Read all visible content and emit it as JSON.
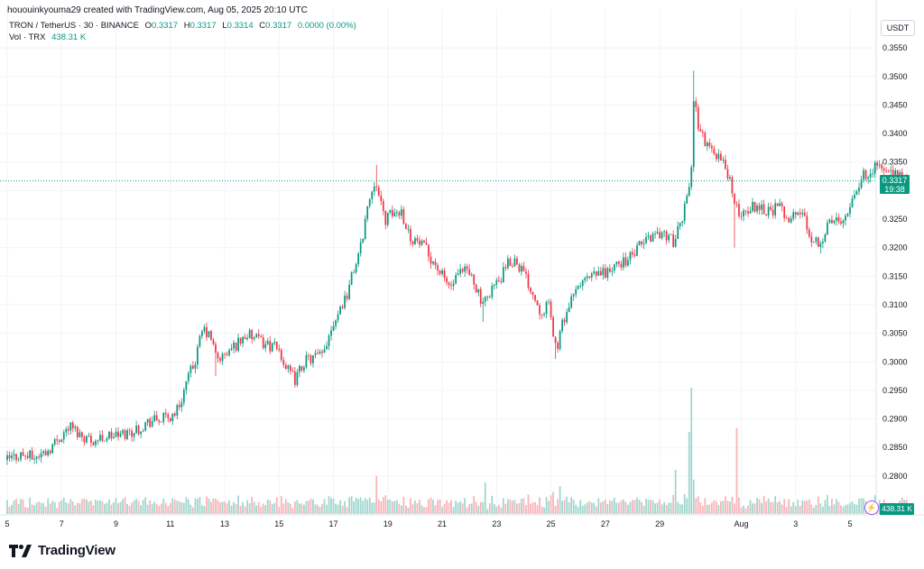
{
  "header": {
    "credit": "hououinkyouma29 created with TradingView.com, Aug 05, 2025 20:10 UTC"
  },
  "legend": {
    "symbol": "TRON / TetherUS · 30 · BINANCE",
    "o_label": "O",
    "o_value": "0.3317",
    "h_label": "H",
    "h_value": "0.3317",
    "l_label": "L",
    "l_value": "0.3314",
    "c_label": "C",
    "c_value": "0.3317",
    "change": "0.0000 (0.00%)",
    "vol_label": "Vol · TRX",
    "vol_value": "438.31 K"
  },
  "price_scale": {
    "unit": "USDT",
    "last_price": "0.3317",
    "countdown": "19:38",
    "volume_tag": "438.31 K"
  },
  "footer": {
    "brand": "TradingView"
  },
  "colors": {
    "up": "#089981",
    "down": "#f23645",
    "vol_up": "#9fd6cc",
    "vol_down": "#f8b3b8",
    "grid": "#f0f3fa",
    "last_line": "#089981"
  },
  "chart_data": {
    "type": "candlestick",
    "title": "TRON / TetherUS · 30 · BINANCE",
    "interval": "30",
    "y_ticks": [
      "0.3550",
      "0.3500",
      "0.3450",
      "0.3400",
      "0.3350",
      "0.3300",
      "0.3250",
      "0.3200",
      "0.3150",
      "0.3100",
      "0.3050",
      "0.3000",
      "0.2950",
      "0.2900",
      "0.2850",
      "0.2800"
    ],
    "ylim": [
      0.2765,
      0.357
    ],
    "x_ticks": [
      "5",
      "7",
      "9",
      "11",
      "13",
      "15",
      "17",
      "19",
      "21",
      "23",
      "25",
      "27",
      "29",
      "Aug",
      "3",
      "5"
    ],
    "x_tick_days": [
      5,
      7,
      9,
      11,
      13,
      15,
      17,
      19,
      21,
      23,
      25,
      27,
      29,
      32,
      34,
      36
    ],
    "last_price": 0.3317,
    "price_path": [
      [
        5.0,
        0.2828
      ],
      [
        5.5,
        0.2838
      ],
      [
        6.0,
        0.2832
      ],
      [
        6.5,
        0.2845
      ],
      [
        7.0,
        0.2872
      ],
      [
        7.3,
        0.2888
      ],
      [
        7.7,
        0.2872
      ],
      [
        8.2,
        0.2862
      ],
      [
        8.7,
        0.287
      ],
      [
        9.2,
        0.2872
      ],
      [
        9.7,
        0.288
      ],
      [
        10.2,
        0.2895
      ],
      [
        10.7,
        0.29
      ],
      [
        11.0,
        0.2903
      ],
      [
        11.3,
        0.292
      ],
      [
        11.6,
        0.2965
      ],
      [
        11.9,
        0.3
      ],
      [
        12.2,
        0.3058
      ],
      [
        12.5,
        0.304
      ],
      [
        12.7,
        0.3005
      ],
      [
        13.0,
        0.301
      ],
      [
        13.4,
        0.303
      ],
      [
        13.8,
        0.3048
      ],
      [
        14.2,
        0.3038
      ],
      [
        14.6,
        0.303
      ],
      [
        15.0,
        0.302
      ],
      [
        15.3,
        0.2985
      ],
      [
        15.6,
        0.2968
      ],
      [
        15.9,
        0.3
      ],
      [
        16.3,
        0.3008
      ],
      [
        16.6,
        0.301
      ],
      [
        16.9,
        0.306
      ],
      [
        17.2,
        0.309
      ],
      [
        17.5,
        0.312
      ],
      [
        17.8,
        0.317
      ],
      [
        18.0,
        0.32
      ],
      [
        18.2,
        0.326
      ],
      [
        18.4,
        0.33
      ],
      [
        18.55,
        0.3325
      ],
      [
        18.7,
        0.328
      ],
      [
        18.9,
        0.325
      ],
      [
        19.2,
        0.326
      ],
      [
        19.5,
        0.3265
      ],
      [
        19.8,
        0.322
      ],
      [
        20.1,
        0.321
      ],
      [
        20.4,
        0.3195
      ],
      [
        20.7,
        0.3175
      ],
      [
        21.0,
        0.315
      ],
      [
        21.3,
        0.313
      ],
      [
        21.6,
        0.315
      ],
      [
        21.9,
        0.316
      ],
      [
        22.2,
        0.314
      ],
      [
        22.5,
        0.3095
      ],
      [
        22.8,
        0.313
      ],
      [
        23.1,
        0.314
      ],
      [
        23.4,
        0.317
      ],
      [
        23.7,
        0.318
      ],
      [
        24.0,
        0.3155
      ],
      [
        24.3,
        0.3125
      ],
      [
        24.6,
        0.309
      ],
      [
        24.9,
        0.31
      ],
      [
        25.2,
        0.302
      ],
      [
        25.5,
        0.308
      ],
      [
        25.8,
        0.311
      ],
      [
        26.1,
        0.314
      ],
      [
        26.4,
        0.3145
      ],
      [
        26.8,
        0.3155
      ],
      [
        27.2,
        0.316
      ],
      [
        27.6,
        0.3175
      ],
      [
        28.0,
        0.3185
      ],
      [
        28.4,
        0.321
      ],
      [
        28.8,
        0.3225
      ],
      [
        29.2,
        0.3225
      ],
      [
        29.5,
        0.321
      ],
      [
        29.8,
        0.324
      ],
      [
        30.0,
        0.33
      ],
      [
        30.15,
        0.332
      ],
      [
        30.25,
        0.346
      ],
      [
        30.4,
        0.342
      ],
      [
        30.7,
        0.338
      ],
      [
        31.0,
        0.337
      ],
      [
        31.3,
        0.335
      ],
      [
        31.6,
        0.332
      ],
      [
        31.75,
        0.327
      ],
      [
        32.0,
        0.326
      ],
      [
        32.3,
        0.327
      ],
      [
        32.6,
        0.3275
      ],
      [
        33.0,
        0.3265
      ],
      [
        33.4,
        0.327
      ],
      [
        33.8,
        0.325
      ],
      [
        34.2,
        0.3265
      ],
      [
        34.6,
        0.3215
      ],
      [
        34.9,
        0.321
      ],
      [
        35.2,
        0.324
      ],
      [
        35.5,
        0.325
      ],
      [
        35.8,
        0.3255
      ],
      [
        36.1,
        0.329
      ],
      [
        36.4,
        0.332
      ],
      [
        36.7,
        0.3335
      ],
      [
        37.0,
        0.3345
      ],
      [
        37.3,
        0.3335
      ],
      [
        37.6,
        0.3325
      ],
      [
        37.9,
        0.3325
      ],
      [
        38.1,
        0.3317
      ]
    ],
    "spikes": [
      {
        "day": 18.55,
        "high": 0.3345
      },
      {
        "day": 30.25,
        "high": 0.351
      },
      {
        "day": 31.75,
        "low": 0.32
      },
      {
        "day": 25.2,
        "low": 0.3005
      },
      {
        "day": 15.6,
        "low": 0.2955
      },
      {
        "day": 22.5,
        "low": 0.307
      },
      {
        "day": 34.9,
        "low": 0.319
      },
      {
        "day": 12.7,
        "low": 0.2975
      }
    ],
    "volume_spikes": [
      {
        "day": 30.2,
        "rel": 1.0
      },
      {
        "day": 30.1,
        "rel": 0.65
      },
      {
        "day": 31.8,
        "rel": 0.68
      },
      {
        "day": 18.6,
        "rel": 0.3
      },
      {
        "day": 29.6,
        "rel": 0.35
      },
      {
        "day": 25.3,
        "rel": 0.22
      },
      {
        "day": 22.6,
        "rel": 0.25
      }
    ],
    "current_volume": "438.31 K"
  }
}
